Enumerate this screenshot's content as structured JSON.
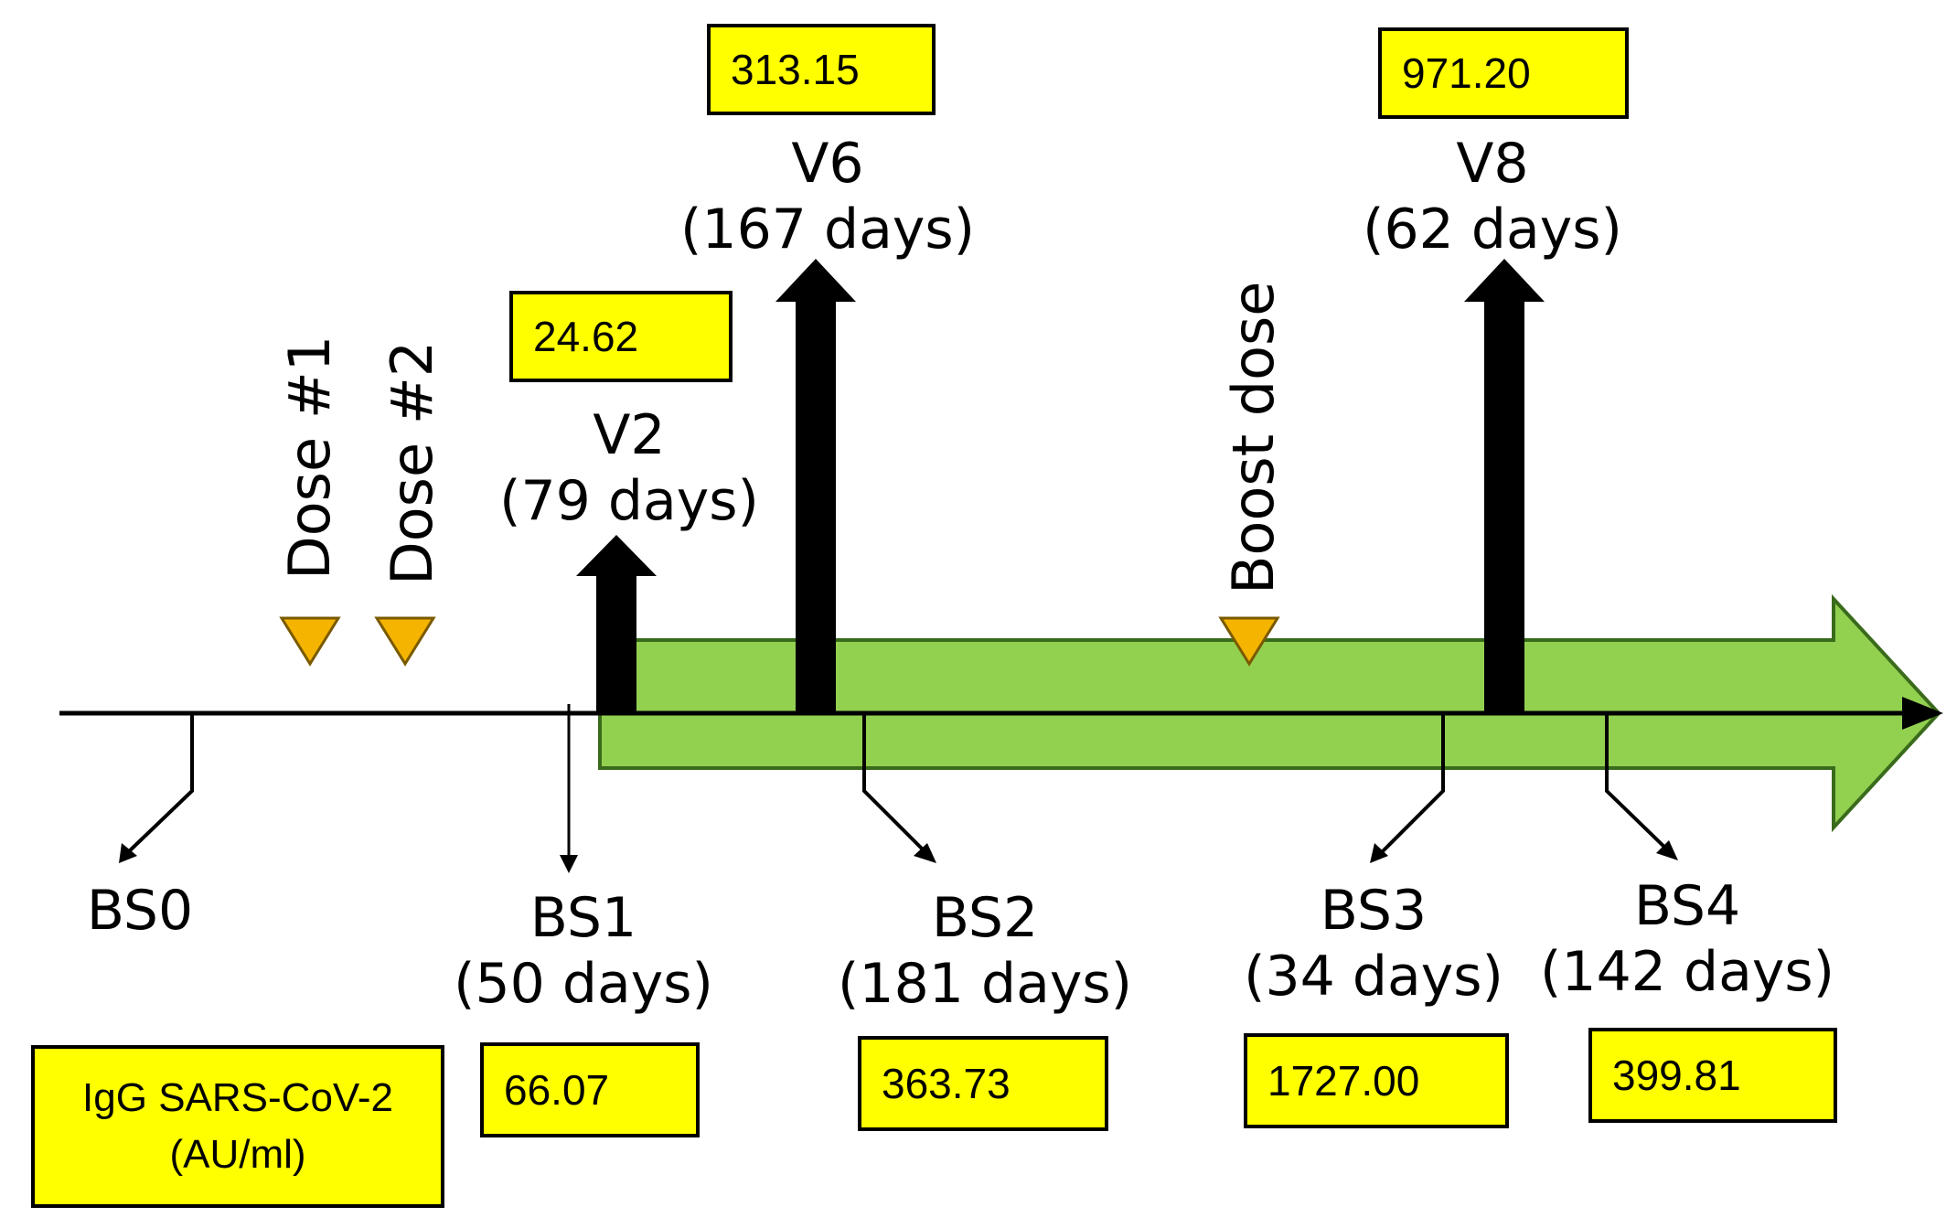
{
  "doses": [
    {
      "label": "Dose #1",
      "color": "#f5b400"
    },
    {
      "label": "Dose #2",
      "color": "#f5b400"
    },
    {
      "label": "Boost dose",
      "color": "#f5b400"
    }
  ],
  "visits": [
    {
      "name": "V2",
      "interval": "(79 days)",
      "value": "24.62"
    },
    {
      "name": "V6",
      "interval": "(167 days)",
      "value": "313.15"
    },
    {
      "name": "V8",
      "interval": "(62 days)",
      "value": "971.20"
    }
  ],
  "samples": [
    {
      "name": "BS0",
      "interval": "",
      "value": ""
    },
    {
      "name": "BS1",
      "interval": "(50 days)",
      "value": "66.07"
    },
    {
      "name": "BS2",
      "interval": "(181 days)",
      "value": "363.73"
    },
    {
      "name": "BS3",
      "interval": "(34 days)",
      "value": "1727.00"
    },
    {
      "name": "BS4",
      "interval": "(142 days)",
      "value": "399.81"
    }
  ],
  "legend": {
    "line1": "IgG SARS-CoV-2",
    "line2": "(AU/ml)"
  },
  "colors": {
    "highlight": "#ffff00",
    "period_arrow": "#92d050",
    "dose_marker": "#f5b400"
  }
}
